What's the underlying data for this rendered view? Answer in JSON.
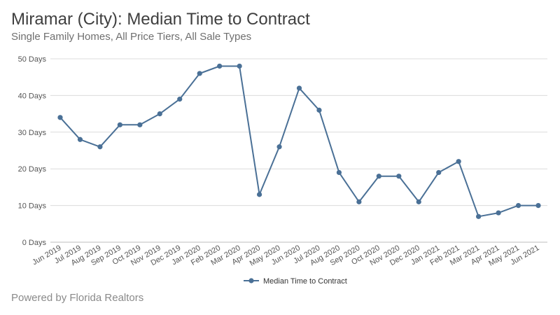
{
  "chart_data": {
    "type": "line",
    "title": "Miramar (City): Median Time to Contract",
    "subtitle": "Single Family Homes, All Price Tiers, All Sale Types",
    "categories": [
      "Jun 2019",
      "Jul 2019",
      "Aug 2019",
      "Sep 2019",
      "Oct 2019",
      "Nov 2019",
      "Dec 2019",
      "Jan 2020",
      "Feb 2020",
      "Mar 2020",
      "Apr 2020",
      "May 2020",
      "Jun 2020",
      "Jul 2020",
      "Aug 2020",
      "Sep 2020",
      "Oct 2020",
      "Nov 2020",
      "Dec 2020",
      "Jan 2021",
      "Feb 2021",
      "Mar 2021",
      "Apr 2021",
      "May 2021",
      "Jun 2021"
    ],
    "series": [
      {
        "name": "Median Time to Contract",
        "values": [
          34,
          28,
          26,
          32,
          32,
          35,
          39,
          46,
          48,
          48,
          13,
          26,
          42,
          36,
          19,
          11,
          18,
          18,
          11,
          19,
          22,
          7,
          8,
          10,
          10
        ]
      }
    ],
    "ylim": [
      0,
      50
    ],
    "yticks": [
      0,
      10,
      20,
      30,
      40,
      50
    ],
    "ytick_labels": [
      "0 Days",
      "10 Days",
      "20 Days",
      "30 Days",
      "40 Days",
      "50 Days"
    ],
    "grid": true,
    "legend_position": "bottom",
    "color": "#4a7096"
  },
  "footer": "Powered by Florida Realtors"
}
